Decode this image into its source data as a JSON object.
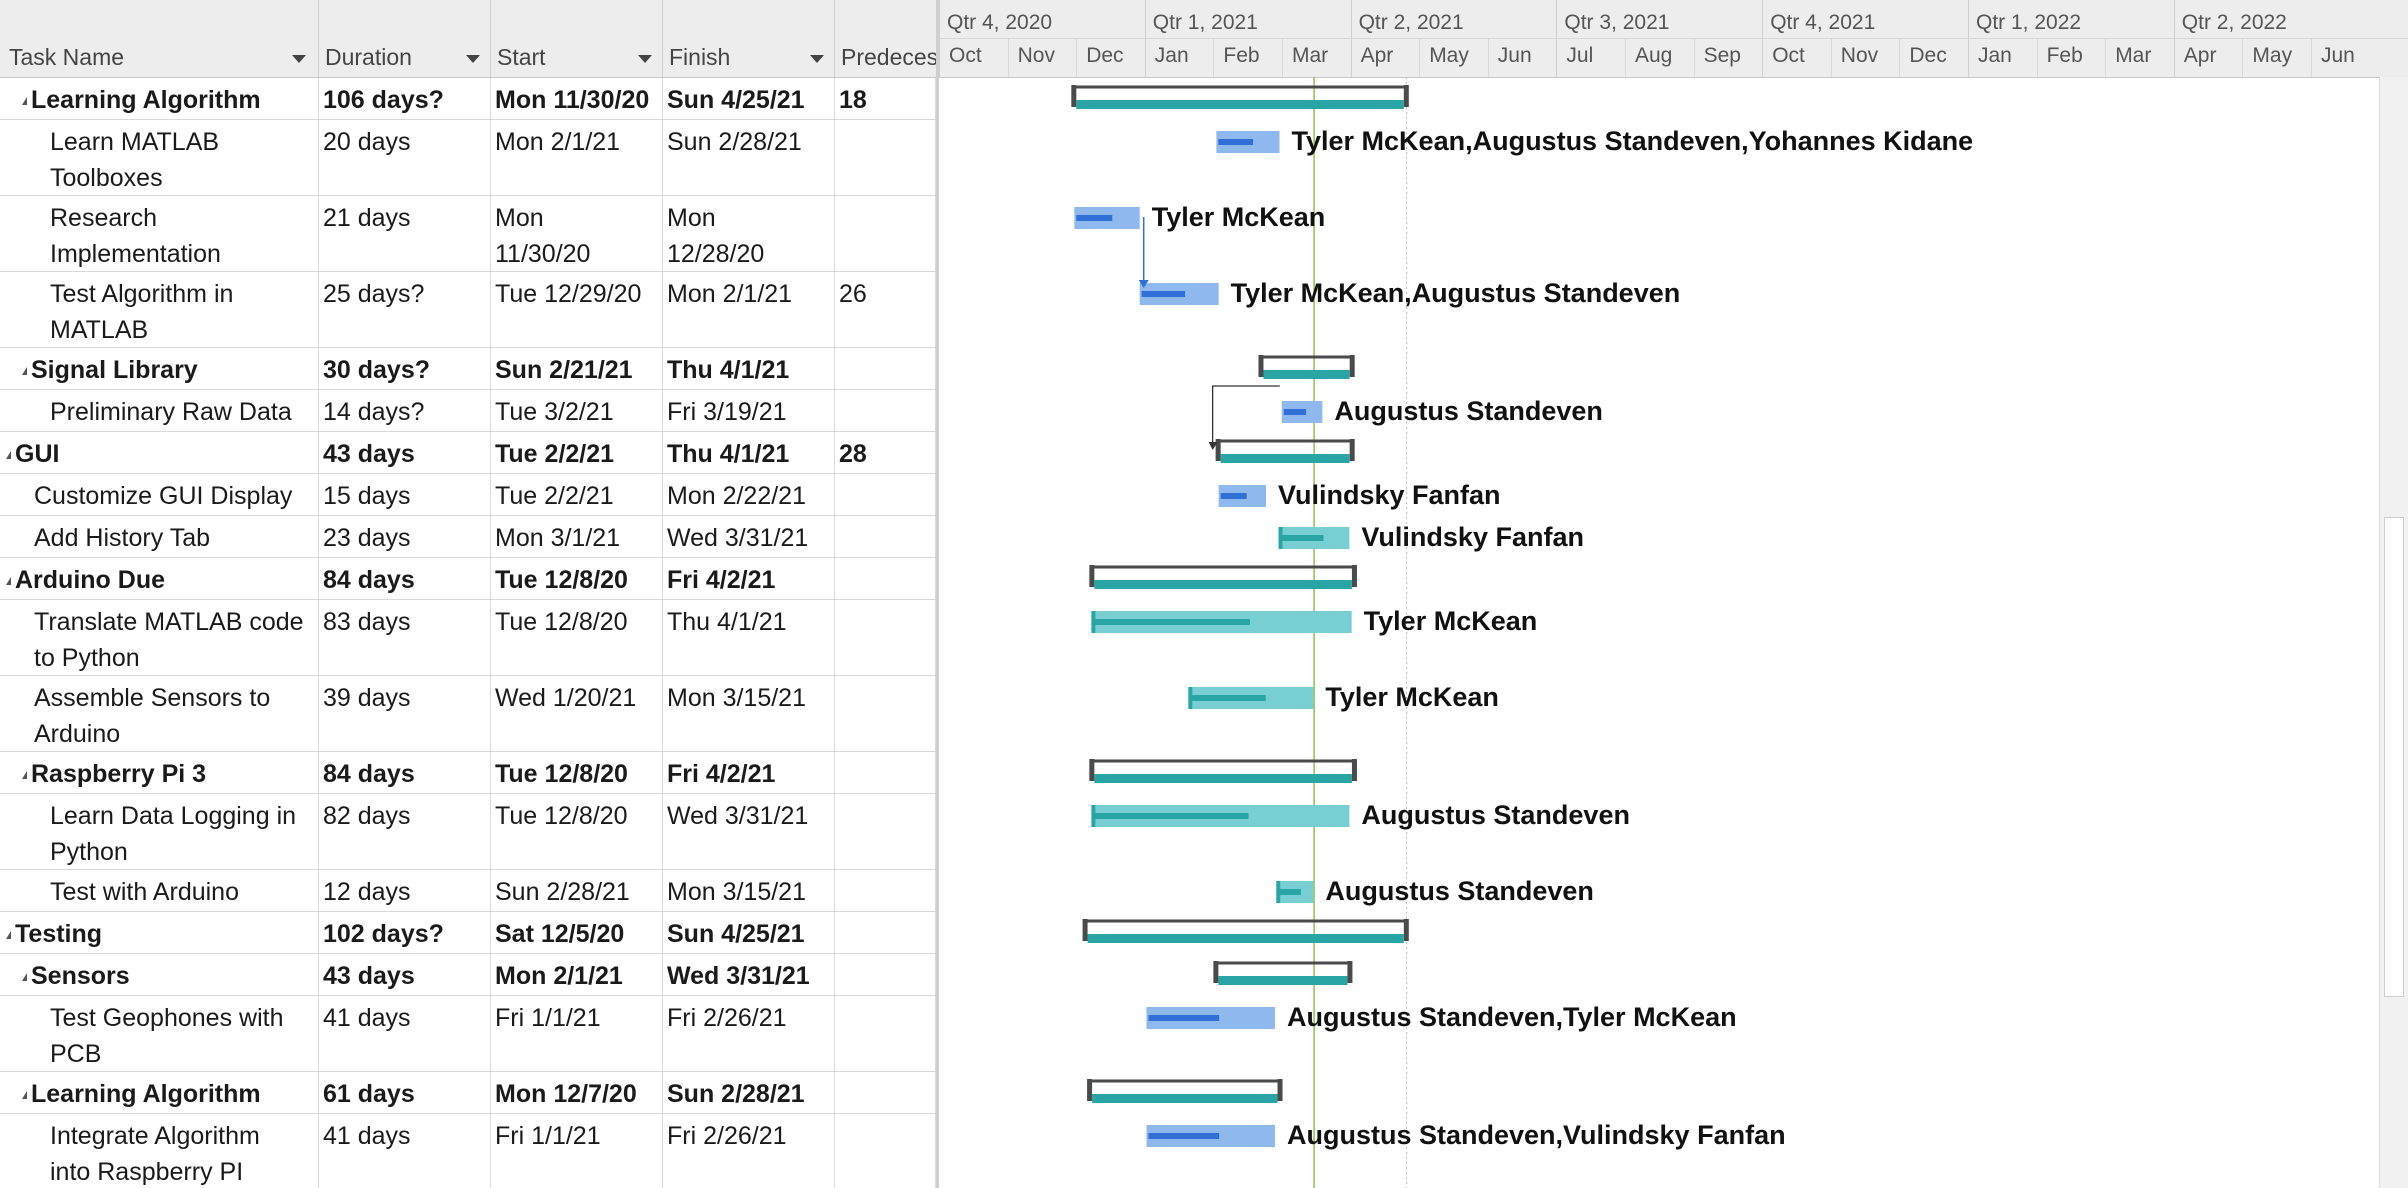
{
  "columns": {
    "task_name": "Task Name",
    "duration": "Duration",
    "start": "Start",
    "finish": "Finish",
    "predecessors": "Predeces"
  },
  "tasks": [
    {
      "name": "Learning Algorithm",
      "duration": "106 days?",
      "start": "Mon 11/30/20",
      "finish": "Sun 4/25/21",
      "pred": "18",
      "summary": true,
      "indent": 1
    },
    {
      "name": "Learn MATLAB\nToolboxes",
      "duration": "20 days",
      "start": "Mon 2/1/21",
      "finish": "Sun 2/28/21",
      "pred": "",
      "summary": false,
      "indent": 2
    },
    {
      "name": "Research\nImplementation",
      "duration": "21 days",
      "start": "Mon\n11/30/20",
      "finish": "Mon\n12/28/20",
      "pred": "",
      "summary": false,
      "indent": 2
    },
    {
      "name": "Test Algorithm in\nMATLAB",
      "duration": "25 days?",
      "start": "Tue 12/29/20",
      "finish": "Mon 2/1/21",
      "pred": "26",
      "summary": false,
      "indent": 2
    },
    {
      "name": "Signal Library",
      "duration": "30 days?",
      "start": "Sun 2/21/21",
      "finish": "Thu 4/1/21",
      "pred": "",
      "summary": true,
      "indent": 1
    },
    {
      "name": "Preliminary Raw Data",
      "duration": "14 days?",
      "start": "Tue 3/2/21",
      "finish": "Fri 3/19/21",
      "pred": "",
      "summary": false,
      "indent": 2
    },
    {
      "name": "GUI",
      "duration": "43 days",
      "start": "Tue 2/2/21",
      "finish": "Thu 4/1/21",
      "pred": "28",
      "summary": true,
      "indent": 0
    },
    {
      "name": "Customize GUI Display",
      "duration": "15 days",
      "start": "Tue 2/2/21",
      "finish": "Mon 2/22/21",
      "pred": "",
      "summary": false,
      "indent": 1
    },
    {
      "name": "Add History Tab",
      "duration": "23 days",
      "start": "Mon 3/1/21",
      "finish": "Wed 3/31/21",
      "pred": "",
      "summary": false,
      "indent": 1
    },
    {
      "name": "Arduino Due",
      "duration": "84 days",
      "start": "Tue 12/8/20",
      "finish": "Fri 4/2/21",
      "pred": "",
      "summary": true,
      "indent": 0
    },
    {
      "name": "Translate MATLAB code\nto Python",
      "duration": "83 days",
      "start": "Tue 12/8/20",
      "finish": "Thu 4/1/21",
      "pred": "",
      "summary": false,
      "indent": 1
    },
    {
      "name": "Assemble Sensors to\nArduino",
      "duration": "39 days",
      "start": "Wed 1/20/21",
      "finish": "Mon 3/15/21",
      "pred": "",
      "summary": false,
      "indent": 1
    },
    {
      "name": "Raspberry Pi 3",
      "duration": "84 days",
      "start": "Tue 12/8/20",
      "finish": "Fri 4/2/21",
      "pred": "",
      "summary": true,
      "indent": 1
    },
    {
      "name": "Learn Data Logging in\nPython",
      "duration": "82 days",
      "start": "Tue 12/8/20",
      "finish": "Wed 3/31/21",
      "pred": "",
      "summary": false,
      "indent": 2
    },
    {
      "name": "Test with Arduino",
      "duration": "12 days",
      "start": "Sun 2/28/21",
      "finish": "Mon 3/15/21",
      "pred": "",
      "summary": false,
      "indent": 2
    },
    {
      "name": "Testing",
      "duration": "102 days?",
      "start": "Sat 12/5/20",
      "finish": "Sun 4/25/21",
      "pred": "",
      "summary": true,
      "indent": 0
    },
    {
      "name": "Sensors",
      "duration": "43 days",
      "start": "Mon 2/1/21",
      "finish": "Wed 3/31/21",
      "pred": "",
      "summary": true,
      "indent": 1
    },
    {
      "name": "Test Geophones with\nPCB",
      "duration": "41 days",
      "start": "Fri 1/1/21",
      "finish": "Fri 2/26/21",
      "pred": "",
      "summary": false,
      "indent": 2
    },
    {
      "name": "Learning Algorithm",
      "duration": "61 days",
      "start": "Mon 12/7/20",
      "finish": "Sun 2/28/21",
      "pred": "",
      "summary": true,
      "indent": 1
    },
    {
      "name": "Integrate Algorithm\ninto Raspberry PI",
      "duration": "41 days",
      "start": "Fri 1/1/21",
      "finish": "Fri 2/26/21",
      "pred": "",
      "summary": false,
      "indent": 2
    }
  ],
  "timescale": {
    "quarters": [
      "Qtr 4, 2020",
      "Qtr 1, 2021",
      "Qtr 2, 2021",
      "Qtr 3, 2021",
      "Qtr 4, 2021",
      "Qtr 1, 2022",
      "Qtr 2, 2022"
    ],
    "months": [
      "Oct",
      "Nov",
      "Dec",
      "Jan",
      "Feb",
      "Mar",
      "Apr",
      "May",
      "Jun",
      "Jul",
      "Aug",
      "Sep",
      "Oct",
      "Nov",
      "Dec",
      "Jan",
      "Feb",
      "Mar",
      "Apr",
      "May",
      "Jun"
    ]
  },
  "gantt": {
    "resources": [
      {
        "row": 1,
        "label": "Tyler McKean,Augustus Standeven,Yohannes Kidane"
      },
      {
        "row": 2,
        "label": "Tyler McKean"
      },
      {
        "row": 3,
        "label": "Tyler McKean,Augustus Standeven"
      },
      {
        "row": 5,
        "label": "Augustus Standeven"
      },
      {
        "row": 7,
        "label": "Vulindsky Fanfan"
      },
      {
        "row": 8,
        "label": "Vulindsky Fanfan"
      },
      {
        "row": 10,
        "label": "Tyler McKean"
      },
      {
        "row": 11,
        "label": "Tyler McKean"
      },
      {
        "row": 13,
        "label": "Augustus Standeven"
      },
      {
        "row": 14,
        "label": "Augustus Standeven"
      },
      {
        "row": 17,
        "label": "Augustus Standeven,Tyler McKean"
      },
      {
        "row": 19,
        "label": "Augustus Standeven,Vulindsky Fanfan"
      }
    ]
  },
  "colors": {
    "summary_teal": "#2aa5a5",
    "task_blue_light": "#8fb8ee",
    "task_blue_dark": "#2f6fd6",
    "task_teal_light": "#78cfd3",
    "bracket": "#4a4a4a",
    "today_line": "#8bc34a"
  }
}
